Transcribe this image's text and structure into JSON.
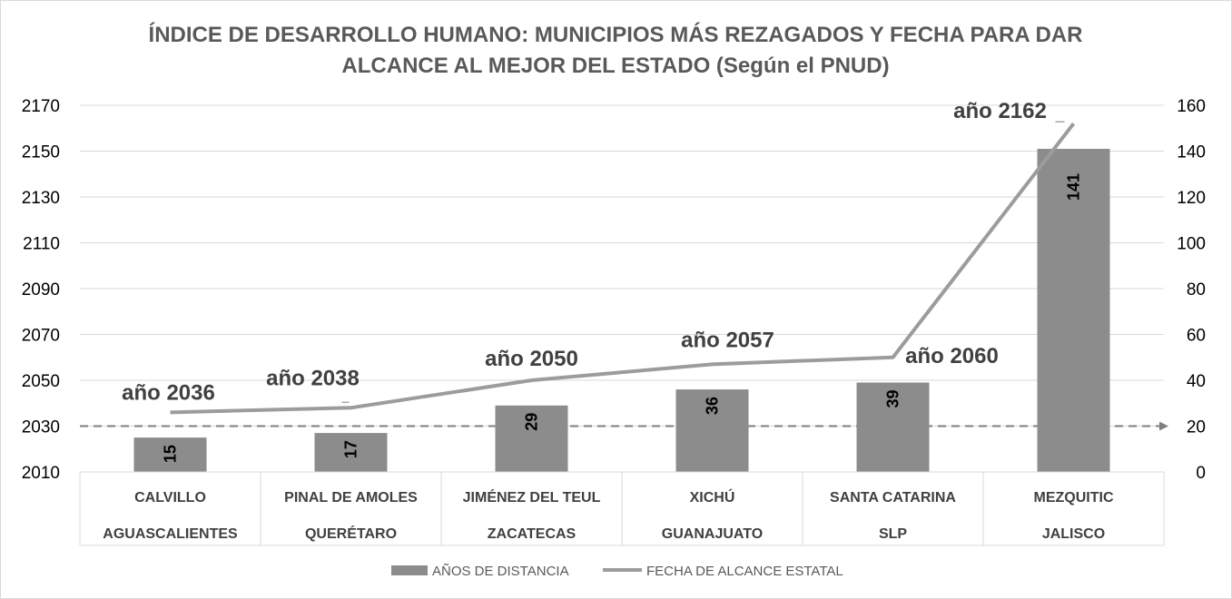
{
  "chart_data": {
    "type": "bar+line",
    "title_lines": [
      "ÍNDICE DE DESARROLLO HUMANO: MUNICIPIOS MÁS REZAGADOS Y FECHA PARA DAR",
      "ALCANCE AL MEJOR DEL ESTADO (Según el PNUD)"
    ],
    "categories": [
      [
        "CALVILLO",
        "AGUASCALIENTES"
      ],
      [
        "PINAL DE AMOLES",
        "QUERÉTARO"
      ],
      [
        "JIMÉNEZ DEL TEUL",
        "ZACATECAS"
      ],
      [
        "XICHÚ",
        "GUANAJUATO"
      ],
      [
        "SANTA CATARINA",
        "SLP"
      ],
      [
        "MEZQUITIC",
        "JALISCO"
      ]
    ],
    "series": [
      {
        "name": "AÑOS DE DISTANCIA",
        "type": "bar",
        "axis": "right",
        "values": [
          15,
          17,
          29,
          36,
          39,
          141
        ],
        "labels": [
          "15",
          "17",
          "29",
          "36",
          "39",
          "141"
        ],
        "color": "#8c8c8c"
      },
      {
        "name": "FECHA DE ALCANCE ESTATAL",
        "type": "line",
        "axis": "left",
        "values": [
          2036,
          2038,
          2050,
          2057,
          2060,
          2162
        ],
        "labels": [
          "año 2036",
          "año 2038",
          "año 2050",
          "año 2057",
          "año 2060",
          "año 2162"
        ],
        "color": "#9c9c9c"
      }
    ],
    "y_left": {
      "min": 2010,
      "max": 2170,
      "ticks": [
        2010,
        2030,
        2050,
        2070,
        2090,
        2110,
        2130,
        2150,
        2170
      ]
    },
    "y_right": {
      "min": 0,
      "max": 160,
      "ticks": [
        0,
        20,
        40,
        60,
        80,
        100,
        120,
        140,
        160
      ]
    },
    "reference_line": {
      "axis": "right",
      "value": 20,
      "style": "dashed-arrow",
      "color": "#7f7f7f"
    },
    "grid": true,
    "legend_position": "bottom"
  }
}
